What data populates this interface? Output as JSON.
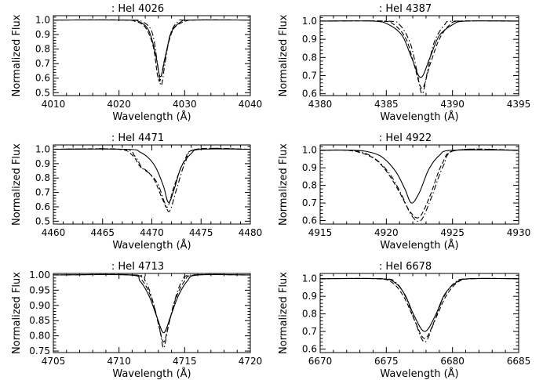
{
  "chart_data": [
    {
      "type": "line",
      "title": ": HeI 4026",
      "xlabel": "Wavelength (Å)",
      "ylabel": "Normalized Flux",
      "xlim": [
        4010,
        4040
      ],
      "ylim": [
        0.48,
        1.03
      ],
      "xticks": [
        "4010",
        "4020",
        "4030",
        "4040"
      ],
      "yticks": [
        "0.5",
        "0.6",
        "0.7",
        "0.8",
        "0.9",
        "1.0"
      ],
      "grid": false,
      "series": [
        {
          "style": "solid",
          "x": [
            4010,
            4021,
            4023,
            4024.5,
            4025.5,
            4026.3,
            4027.1,
            4028,
            4029.5,
            4031,
            4040
          ],
          "y": [
            1.0,
            1.0,
            0.99,
            0.93,
            0.78,
            0.61,
            0.76,
            0.92,
            0.99,
            1.0,
            1.0
          ]
        },
        {
          "style": "dashed",
          "x": [
            4010,
            4020.5,
            4022.5,
            4024,
            4025.2,
            4026.1,
            4027,
            4028.2,
            4030,
            4032,
            4040
          ],
          "y": [
            1.0,
            1.0,
            0.99,
            0.95,
            0.82,
            0.58,
            0.74,
            0.93,
            0.99,
            1.0,
            1.0
          ]
        },
        {
          "style": "dashdot",
          "x": [
            4010,
            4021.5,
            4023.5,
            4025,
            4025.8,
            4026.4,
            4027,
            4027.8,
            4029,
            4030.5,
            4040
          ],
          "y": [
            1.0,
            1.0,
            0.99,
            0.92,
            0.72,
            0.55,
            0.7,
            0.9,
            0.99,
            1.0,
            1.0
          ]
        }
      ]
    },
    {
      "type": "line",
      "title": ": HeI 4387",
      "xlabel": "Wavelength (Å)",
      "ylabel": "Normalized Flux",
      "xlim": [
        4380,
        4395
      ],
      "ylim": [
        0.59,
        1.03
      ],
      "xticks": [
        "4380",
        "4385",
        "4390",
        "4395"
      ],
      "yticks": [
        "0.6",
        "0.7",
        "0.8",
        "0.9",
        "1.0"
      ],
      "grid": false,
      "series": [
        {
          "style": "solid",
          "x": [
            4380,
            4384,
            4385.2,
            4386.2,
            4386.9,
            4387.6,
            4388.3,
            4389,
            4390,
            4391,
            4395
          ],
          "y": [
            1.0,
            1.0,
            0.98,
            0.92,
            0.8,
            0.69,
            0.8,
            0.92,
            0.98,
            1.0,
            1.0
          ]
        },
        {
          "style": "dashed",
          "x": [
            4380,
            4384.5,
            4385.6,
            4386.5,
            4387.1,
            4387.7,
            4388.3,
            4389,
            4389.8,
            4390.7,
            4395
          ],
          "y": [
            1.0,
            1.0,
            0.98,
            0.9,
            0.76,
            0.63,
            0.76,
            0.9,
            0.98,
            1.0,
            1.0
          ]
        },
        {
          "style": "dashdot",
          "x": [
            4380,
            4385,
            4386,
            4386.8,
            4387.3,
            4387.7,
            4388.1,
            4388.6,
            4389.4,
            4390.2,
            4395
          ],
          "y": [
            1.0,
            1.0,
            0.98,
            0.88,
            0.73,
            0.6,
            0.72,
            0.88,
            0.98,
            1.0,
            1.0
          ]
        }
      ]
    },
    {
      "type": "line",
      "title": ": HeI 4471",
      "xlabel": "Wavelength (Å)",
      "ylabel": "Normalized Flux",
      "xlim": [
        4460,
        4480
      ],
      "ylim": [
        0.48,
        1.03
      ],
      "xticks": [
        "4460",
        "4465",
        "4470",
        "4475",
        "4480"
      ],
      "yticks": [
        "0.5",
        "0.6",
        "0.7",
        "0.8",
        "0.9",
        "1.0"
      ],
      "grid": false,
      "series": [
        {
          "style": "solid",
          "x": [
            4460,
            4467.5,
            4468.8,
            4469.8,
            4470.5,
            4471.2,
            4471.7,
            4472.3,
            4473,
            4474,
            4475,
            4480
          ],
          "y": [
            1.0,
            1.0,
            0.98,
            0.93,
            0.86,
            0.74,
            0.63,
            0.73,
            0.88,
            0.97,
            1.0,
            1.0
          ]
        },
        {
          "style": "dashed",
          "x": [
            4460,
            4466.5,
            4468,
            4468.8,
            4469.5,
            4470.3,
            4471.1,
            4471.6,
            4472.3,
            4473.3,
            4474.5,
            4480
          ],
          "y": [
            1.0,
            1.0,
            0.96,
            0.88,
            0.85,
            0.78,
            0.65,
            0.6,
            0.75,
            0.92,
            1.0,
            1.0
          ]
        },
        {
          "style": "dashdot",
          "x": [
            4460,
            4467,
            4468.3,
            4469,
            4469.8,
            4470.6,
            4471.3,
            4471.8,
            4472.5,
            4473.4,
            4474.5,
            4480
          ],
          "y": [
            1.0,
            1.0,
            0.95,
            0.87,
            0.83,
            0.76,
            0.63,
            0.57,
            0.72,
            0.91,
            1.0,
            1.0
          ]
        }
      ]
    },
    {
      "type": "line",
      "title": ": HeI 4922",
      "xlabel": "Wavelength (Å)",
      "ylabel": "Normalized Flux",
      "xlim": [
        4915,
        4930
      ],
      "ylim": [
        0.58,
        1.03
      ],
      "xticks": [
        "4915",
        "4920",
        "4925",
        "4930"
      ],
      "yticks": [
        "0.6",
        "0.7",
        "0.8",
        "0.9",
        "1.0"
      ],
      "grid": false,
      "series": [
        {
          "style": "solid",
          "x": [
            4915,
            4917.5,
            4918.7,
            4919.7,
            4920.7,
            4921.4,
            4921.9,
            4922.5,
            4923.2,
            4924,
            4925,
            4930
          ],
          "y": [
            1.0,
            1.0,
            0.99,
            0.96,
            0.88,
            0.78,
            0.7,
            0.76,
            0.89,
            0.97,
            1.0,
            1.0
          ]
        },
        {
          "style": "dashed",
          "x": [
            4915,
            4917,
            4918.3,
            4919.3,
            4920.2,
            4921,
            4921.8,
            4922.5,
            4923.3,
            4924.2,
            4925.3,
            4930
          ],
          "y": [
            1.0,
            1.0,
            0.98,
            0.94,
            0.86,
            0.76,
            0.65,
            0.62,
            0.74,
            0.92,
            1.0,
            1.0
          ]
        },
        {
          "style": "dashdot",
          "x": [
            4915,
            4917.3,
            4918.5,
            4919.5,
            4920.4,
            4921.2,
            4921.9,
            4922.6,
            4923.4,
            4924.3,
            4925.3,
            4930
          ],
          "y": [
            1.0,
            1.0,
            0.98,
            0.93,
            0.85,
            0.74,
            0.63,
            0.6,
            0.73,
            0.91,
            1.0,
            1.0
          ]
        }
      ]
    },
    {
      "type": "line",
      "title": ": HeI 4713",
      "xlabel": "Wavelength (Å)",
      "ylabel": "Normalized Flux",
      "xlim": [
        4705,
        4720
      ],
      "ylim": [
        0.745,
        1.005
      ],
      "xticks": [
        "4705",
        "4710",
        "4715",
        "4720"
      ],
      "yticks": [
        "0.75",
        "0.80",
        "0.85",
        "0.90",
        "0.95",
        "1.00"
      ],
      "grid": false,
      "series": [
        {
          "style": "solid",
          "x": [
            4705,
            4710.8,
            4711.6,
            4712.3,
            4712.9,
            4713.4,
            4713.9,
            4714.5,
            4715.2,
            4716,
            4720
          ],
          "y": [
            1.0,
            1.0,
            0.98,
            0.93,
            0.86,
            0.81,
            0.86,
            0.93,
            0.98,
            1.0,
            1.0
          ]
        },
        {
          "style": "dashed",
          "x": [
            4705,
            4711,
            4711.8,
            4712.5,
            4713,
            4713.4,
            4713.8,
            4714.3,
            4715,
            4715.8,
            4720
          ],
          "y": [
            1.0,
            1.0,
            0.98,
            0.92,
            0.84,
            0.78,
            0.84,
            0.92,
            0.98,
            1.0,
            1.0
          ]
        },
        {
          "style": "dashdot",
          "x": [
            4705,
            4711.2,
            4712,
            4712.6,
            4713.1,
            4713.4,
            4713.7,
            4714.2,
            4714.8,
            4715.6,
            4720
          ],
          "y": [
            1.0,
            1.0,
            0.98,
            0.91,
            0.82,
            0.76,
            0.82,
            0.91,
            0.98,
            1.0,
            1.0
          ]
        }
      ]
    },
    {
      "type": "line",
      "title": ": HeI 6678",
      "xlabel": "Wavelength (Å)",
      "ylabel": "Normalized Flux",
      "xlim": [
        6670,
        6685
      ],
      "ylim": [
        0.58,
        1.03
      ],
      "xticks": [
        "6670",
        "6675",
        "6680",
        "6685"
      ],
      "yticks": [
        "0.6",
        "0.7",
        "0.8",
        "0.9",
        "1.0"
      ],
      "grid": false,
      "series": [
        {
          "style": "solid",
          "x": [
            6670,
            6674.5,
            6675.6,
            6676.4,
            6677.1,
            6677.9,
            6678.7,
            6679.4,
            6680.3,
            6681.3,
            6685
          ],
          "y": [
            1.0,
            1.0,
            0.98,
            0.91,
            0.79,
            0.7,
            0.79,
            0.91,
            0.98,
            1.0,
            1.0
          ]
        },
        {
          "style": "dashed",
          "x": [
            6670,
            6674.2,
            6675.4,
            6676.3,
            6677.1,
            6677.9,
            6678.7,
            6679.5,
            6680.4,
            6681.5,
            6685
          ],
          "y": [
            1.0,
            1.0,
            0.98,
            0.9,
            0.77,
            0.66,
            0.77,
            0.9,
            0.98,
            1.0,
            1.0
          ]
        },
        {
          "style": "dashdot",
          "x": [
            6670,
            6674.6,
            6675.7,
            6676.5,
            6677.2,
            6677.9,
            6678.6,
            6679.3,
            6680.2,
            6681.2,
            6685
          ],
          "y": [
            1.0,
            1.0,
            0.98,
            0.89,
            0.75,
            0.64,
            0.75,
            0.89,
            0.98,
            1.0,
            1.0
          ]
        }
      ]
    }
  ]
}
